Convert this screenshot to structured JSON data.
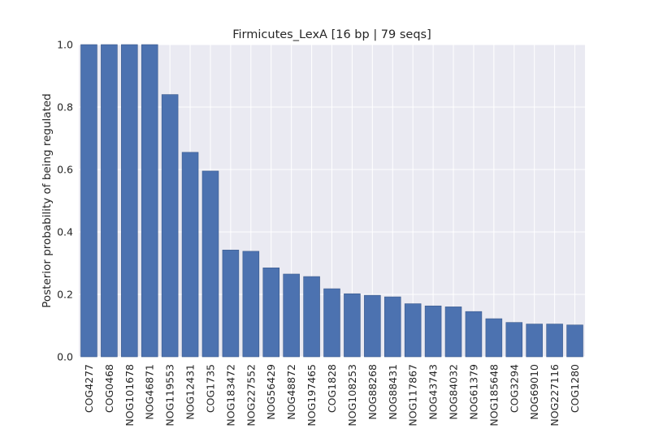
{
  "chart_data": {
    "type": "bar",
    "title": "Firmicutes_LexA [16 bp | 79 seqs]",
    "xlabel": "",
    "ylabel": "Posterior probability of being regulated",
    "ylim": [
      0,
      1.0
    ],
    "yticks": [
      "0.0",
      "0.2",
      "0.4",
      "0.6",
      "0.8",
      "1.0"
    ],
    "grid": true,
    "colors": {
      "background": "#EAEAF2",
      "bar": "#4C72B0",
      "grid": "#FFFFFF",
      "text": "#262626"
    },
    "categories": [
      "COG4277",
      "COG0468",
      "NOG101678",
      "NOG46871",
      "NOG119553",
      "NOG12431",
      "COG1735",
      "NOG183472",
      "NOG227552",
      "NOG56429",
      "NOG48872",
      "NOG197465",
      "COG1828",
      "NOG108253",
      "NOG88268",
      "NOG88431",
      "NOG117867",
      "NOG43743",
      "NOG84032",
      "NOG61379",
      "NOG185648",
      "COG3294",
      "NOG69010",
      "NOG227116",
      "COG1280"
    ],
    "values": [
      1.0,
      1.0,
      1.0,
      1.0,
      0.84,
      0.655,
      0.595,
      0.342,
      0.338,
      0.285,
      0.265,
      0.257,
      0.218,
      0.202,
      0.197,
      0.192,
      0.17,
      0.163,
      0.16,
      0.145,
      0.122,
      0.11,
      0.105,
      0.105,
      0.102
    ]
  }
}
